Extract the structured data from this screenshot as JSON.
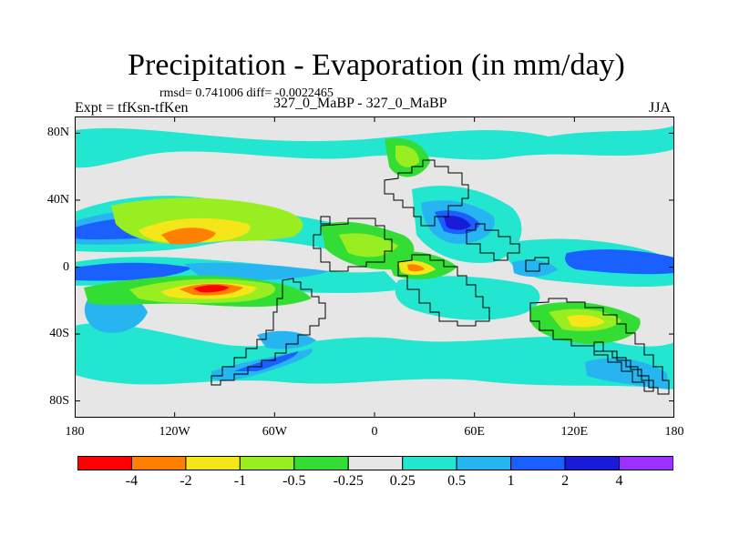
{
  "figure": {
    "title": "Precipitation - Evaporation (in mm/day)",
    "stats": "rmsd= 0.741006 diff= -0.0022465",
    "experiment": "Expt = tfKsn-tfKen",
    "subtitle": "327_0_MaBP - 327_0_MaBP",
    "season": "JJA"
  },
  "axes": {
    "lat_labels": [
      "80N",
      "40N",
      "0",
      "40S",
      "80S"
    ],
    "lat_values": [
      80,
      40,
      0,
      -40,
      -80
    ],
    "lon_labels": [
      "180",
      "120W",
      "60W",
      "0",
      "60E",
      "120E",
      "180"
    ],
    "lon_values": [
      -180,
      -120,
      -60,
      0,
      60,
      120,
      180
    ],
    "lat_range": [
      -90,
      90
    ],
    "lon_range": [
      -180,
      180
    ]
  },
  "colorbar": {
    "labels": [
      "-4",
      "-2",
      "-1",
      "-0.5",
      "-0.25",
      "0.25",
      "0.5",
      "1",
      "2",
      "4"
    ],
    "colors": [
      "#ff0000",
      "#ff8000",
      "#f5e61a",
      "#99ee22",
      "#33dd33",
      "#e6e6e6",
      "#22e6d0",
      "#27b5f2",
      "#1a60ff",
      "#1a1ad9",
      "#9b30ff"
    ]
  },
  "map": {
    "background_color": "#e6e6e6",
    "land_outline_color": "#000000"
  }
}
